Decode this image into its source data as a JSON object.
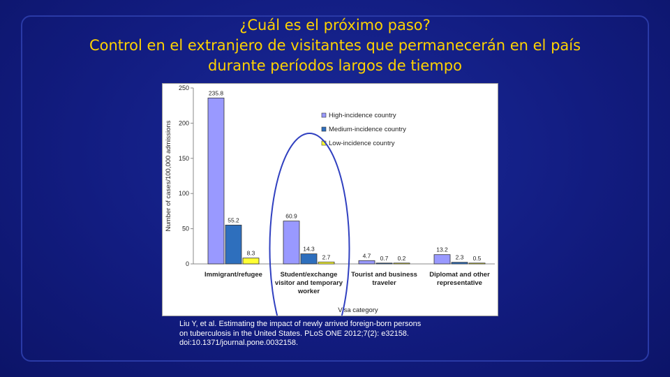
{
  "title": {
    "line1": "¿Cuál es el próximo paso?",
    "line2": "Control en el extranjero de visitantes que permanecerán en el país",
    "line3": "durante períodos largos de tiempo"
  },
  "chart_data": {
    "type": "bar",
    "xlabel": "Visa category",
    "ylabel": "Number of cases/100,000 admissions",
    "ylim": [
      0,
      250
    ],
    "yticks": [
      0,
      50,
      100,
      150,
      200,
      250
    ],
    "categories": [
      [
        "Immigrant/refugee"
      ],
      [
        "Student/exchange",
        "visitor and temporary",
        "worker"
      ],
      [
        "Tourist and business",
        "traveler"
      ],
      [
        "Diplomat and other",
        "representative"
      ]
    ],
    "series": [
      {
        "name": "High-incidence country",
        "color": "#9999ff",
        "values": [
          235.8,
          60.9,
          4.7,
          13.2
        ],
        "labels": [
          "235.8",
          "60.9",
          "4.7",
          "13.2"
        ]
      },
      {
        "name": "Medium-incidence country",
        "color": "#2e6fbd",
        "values": [
          55.2,
          14.3,
          0.7,
          2.3
        ],
        "labels": [
          "55.2",
          "14.3",
          "0.7",
          "2.3"
        ]
      },
      {
        "name": "Low-incidence country",
        "color": "#ffff33",
        "values": [
          8.3,
          2.7,
          0.2,
          0.5
        ],
        "labels": [
          "8.3",
          "2.7",
          "0.2",
          "0.5"
        ]
      }
    ],
    "legend": "top-right",
    "grid": false,
    "annotation": "blue ellipse highlighting the Student/exchange visitor and temporary worker group",
    "annotation_color": "#3040c0"
  },
  "citation": {
    "line1": "Liu Y, et al.  Estimating the impact of newly arrived foreign-born persons",
    "line2": "on tuberculosis in the United States.  PLoS ONE 2012;7(2): e32158.",
    "line3": "doi:10.1371/journal.pone.0032158."
  }
}
